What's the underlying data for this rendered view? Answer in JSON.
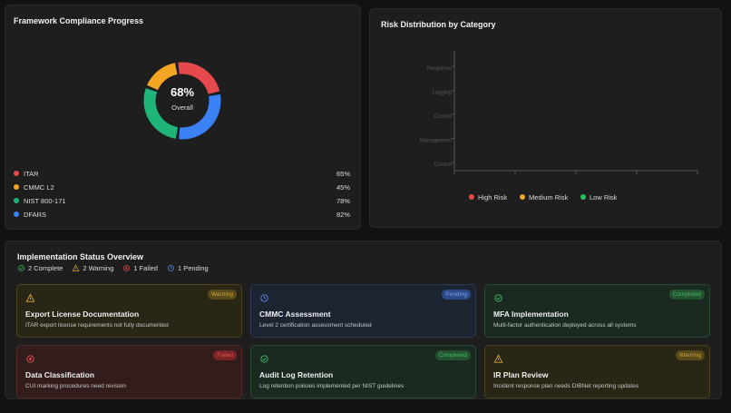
{
  "compliance": {
    "title": "Framework Compliance Progress",
    "overall": "68%",
    "overall_caption": "Overall",
    "frameworks": [
      {
        "name": "ITAR",
        "value": 65,
        "label": "65%",
        "color": "#e5484d"
      },
      {
        "name": "CMMC L2",
        "value": 45,
        "label": "45%",
        "color": "#f5a524"
      },
      {
        "name": "NIST 800-171",
        "value": 78,
        "label": "78%",
        "color": "#1fb57a"
      },
      {
        "name": "DFARS",
        "value": 82,
        "label": "82%",
        "color": "#3b82f6"
      }
    ]
  },
  "risk": {
    "title": "Risk Distribution by Category",
    "categories": [
      "Incident Response",
      "Audit & Logging",
      "Access Control",
      "Data Management",
      "Export Control"
    ],
    "legend": [
      {
        "name": "High Risk",
        "color": "#e5484d"
      },
      {
        "name": "Medium Risk",
        "color": "#f5a524"
      },
      {
        "name": "Low Risk",
        "color": "#22c55e"
      }
    ]
  },
  "status": {
    "title": "Implementation Status Overview",
    "summary": [
      "2 Complete",
      "2 Warning",
      "1 Failed",
      "1 Pending"
    ],
    "cards": [
      {
        "kind": "warning",
        "badge": "Warning",
        "title": "Export License Documentation",
        "desc": "ITAR export license requirements not fully documented"
      },
      {
        "kind": "pending",
        "badge": "Pending",
        "title": "CMMC Assessment",
        "desc": "Level 2 certification assessment scheduled"
      },
      {
        "kind": "complete",
        "badge": "Completed",
        "title": "MFA Implementation",
        "desc": "Multi-factor authentication deployed across all systems"
      },
      {
        "kind": "failed",
        "badge": "Failed",
        "title": "Data Classification",
        "desc": "CUI marking procedures need revision"
      },
      {
        "kind": "complete",
        "badge": "Completed",
        "title": "Audit Log Retention",
        "desc": "Log retention policies implemented per NIST guidelines"
      },
      {
        "kind": "warning",
        "badge": "Warning",
        "title": "IR Plan Review",
        "desc": "Incident response plan needs DIBNet reporting updates"
      }
    ]
  }
}
